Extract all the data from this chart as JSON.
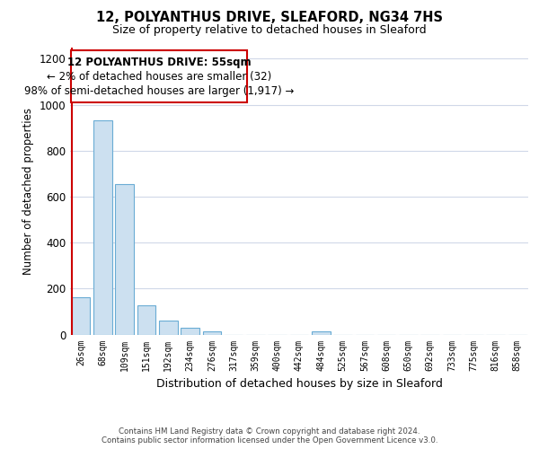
{
  "title": "12, POLYANTHUS DRIVE, SLEAFORD, NG34 7HS",
  "subtitle": "Size of property relative to detached houses in Sleaford",
  "xlabel": "Distribution of detached houses by size in Sleaford",
  "ylabel": "Number of detached properties",
  "bar_labels": [
    "26sqm",
    "68sqm",
    "109sqm",
    "151sqm",
    "192sqm",
    "234sqm",
    "276sqm",
    "317sqm",
    "359sqm",
    "400sqm",
    "442sqm",
    "484sqm",
    "525sqm",
    "567sqm",
    "608sqm",
    "650sqm",
    "692sqm",
    "733sqm",
    "775sqm",
    "816sqm",
    "858sqm"
  ],
  "bar_values": [
    163,
    930,
    655,
    127,
    62,
    28,
    15,
    0,
    0,
    0,
    0,
    13,
    0,
    0,
    0,
    0,
    0,
    0,
    0,
    0,
    0
  ],
  "bar_color": "#cce0f0",
  "bar_edge_color": "#6aacd4",
  "highlight_color": "#cc0000",
  "ylim": [
    0,
    1250
  ],
  "yticks": [
    0,
    200,
    400,
    600,
    800,
    1000,
    1200
  ],
  "annotation_title": "12 POLYANTHUS DRIVE: 55sqm",
  "annotation_line1": "← 2% of detached houses are smaller (32)",
  "annotation_line2": "98% of semi-detached houses are larger (1,917) →",
  "footer_line1": "Contains HM Land Registry data © Crown copyright and database right 2024.",
  "footer_line2": "Contains public sector information licensed under the Open Government Licence v3.0.",
  "grid_color": "#d0d8e8",
  "background_color": "#ffffff"
}
